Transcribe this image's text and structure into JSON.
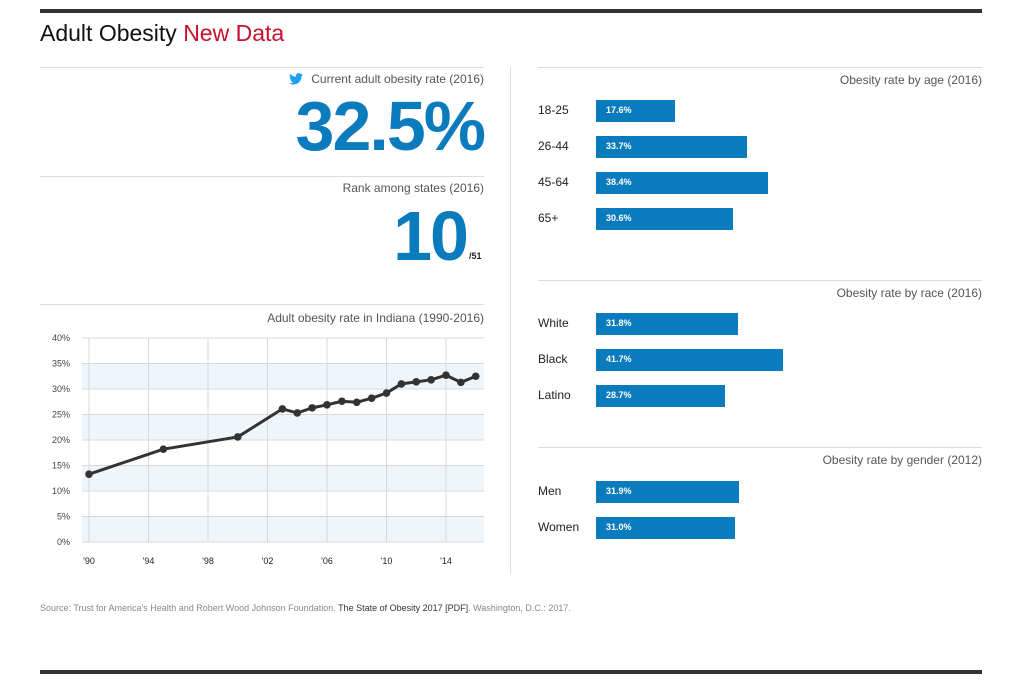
{
  "header": {
    "title_main": "Adult Obesity",
    "title_accent": "New Data",
    "accent_color": "#c8102e"
  },
  "stats": {
    "current_rate_label": "Current adult obesity rate (2016)",
    "current_rate_value": "32.5%",
    "share_icon": "twitter-icon",
    "rank_label": "Rank among states (2016)",
    "rank_value": "10",
    "rank_total": "/51"
  },
  "brand_color": "#0a7bbd",
  "chart_data": [
    {
      "type": "line",
      "title": "Adult obesity rate in Indiana (1990-2016)",
      "xlabel": "",
      "ylabel": "",
      "ylim": [
        0,
        40
      ],
      "xlim": [
        1990,
        2016
      ],
      "yticks": [
        "0%",
        "5%",
        "10%",
        "15%",
        "20%",
        "25%",
        "30%",
        "35%",
        "40%"
      ],
      "xticks": [
        {
          "year": 1990,
          "label": "'90"
        },
        {
          "year": 1994,
          "label": "'94"
        },
        {
          "year": 1998,
          "label": "'98"
        },
        {
          "year": 2002,
          "label": "'02"
        },
        {
          "year": 2006,
          "label": "'06"
        },
        {
          "year": 2010,
          "label": "'10"
        },
        {
          "year": 2014,
          "label": "'14"
        }
      ],
      "grid": true,
      "x": [
        1990,
        1995,
        2000,
        2003,
        2004,
        2005,
        2006,
        2007,
        2008,
        2009,
        2010,
        2011,
        2012,
        2013,
        2014,
        2015,
        2016
      ],
      "values": [
        13.3,
        18.2,
        20.6,
        26.1,
        25.3,
        26.3,
        26.9,
        27.6,
        27.4,
        28.2,
        29.2,
        31.0,
        31.4,
        31.8,
        32.7,
        31.3,
        32.5
      ]
    },
    {
      "type": "bar",
      "title": "Obesity rate by age (2016)",
      "categories": [
        "18-25",
        "26-44",
        "45-64",
        "65+"
      ],
      "values": [
        17.6,
        33.7,
        38.4,
        30.6
      ],
      "labels": [
        "17.6%",
        "33.7%",
        "38.4%",
        "30.6%"
      ]
    },
    {
      "type": "bar",
      "title": "Obesity rate by race (2016)",
      "categories": [
        "White",
        "Black",
        "Latino"
      ],
      "values": [
        31.8,
        41.7,
        28.7
      ],
      "labels": [
        "31.8%",
        "41.7%",
        "28.7%"
      ]
    },
    {
      "type": "bar",
      "title": "Obesity rate by gender (2012)",
      "categories": [
        "Men",
        "Women"
      ],
      "values": [
        31.9,
        31.0
      ],
      "labels": [
        "31.9%",
        "31.0%"
      ]
    }
  ],
  "source": {
    "prefix": "Source: Trust for America's Health and Robert Wood Johnson Foundation. ",
    "link_text": "The State of Obesity 2017 [PDF]",
    "suffix": ". Washington, D.C.: 2017."
  }
}
